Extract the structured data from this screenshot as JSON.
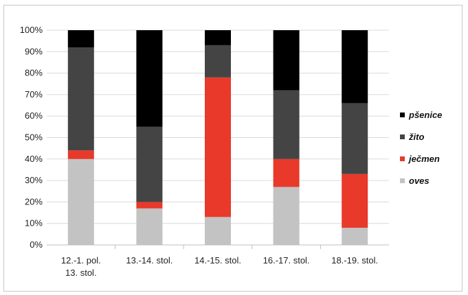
{
  "chart_data": {
    "type": "bar",
    "stacked": true,
    "categories": [
      [
        "12.-1. pol.",
        "13. stol."
      ],
      [
        "13.-14. stol."
      ],
      [
        "14.-15. stol."
      ],
      [
        "16.-17. stol."
      ],
      [
        "18.-19. stol."
      ]
    ],
    "series": [
      {
        "name": "oves",
        "color": "#c3c3c3",
        "values": [
          40,
          17,
          13,
          27,
          8
        ]
      },
      {
        "name": "ječmen",
        "color": "#e8392a",
        "values": [
          4,
          3,
          65,
          13,
          25
        ]
      },
      {
        "name": "žito",
        "color": "#444444",
        "values": [
          48,
          35,
          15,
          32,
          33
        ]
      },
      {
        "name": "pšenice",
        "color": "#000000",
        "values": [
          8,
          45,
          7,
          28,
          34
        ]
      }
    ],
    "legend_order": [
      "pšenice",
      "žito",
      "ječmen",
      "oves"
    ],
    "legend_position": "right",
    "ylim": [
      0,
      100
    ],
    "yticks": [
      "0%",
      "10%",
      "20%",
      "30%",
      "40%",
      "50%",
      "60%",
      "70%",
      "80%",
      "90%",
      "100%"
    ],
    "grid": true
  }
}
